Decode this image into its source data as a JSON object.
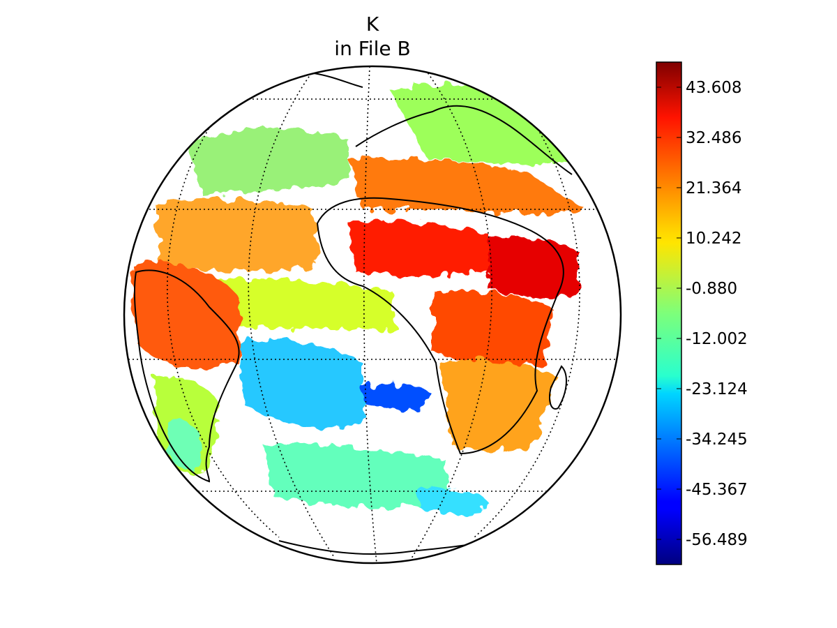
{
  "figure": {
    "title_line1": "K",
    "title_line2": "in File B"
  },
  "map": {
    "projection": "orthographic",
    "center": {
      "lon": 0,
      "lat": 0
    },
    "grid": "dotted",
    "background": "#ffffff",
    "missing_data_color": "#ffffff"
  },
  "colorbar": {
    "colormap": "jet",
    "min": -62.05,
    "max": 49.17,
    "ticks": [
      "43.608",
      "32.486",
      "21.364",
      "10.242",
      "-0.880",
      "-12.002",
      "-23.124",
      "-34.245",
      "-45.367",
      "-56.489"
    ]
  }
}
